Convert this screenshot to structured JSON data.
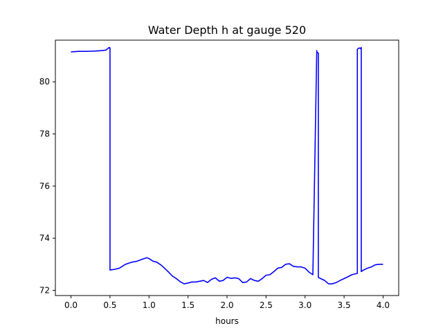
{
  "chart_data": {
    "type": "line",
    "title": "Water Depth h at gauge 520",
    "xlabel": "hours",
    "ylabel": "",
    "xlim": [
      -0.2,
      4.2
    ],
    "ylim": [
      71.8,
      81.6
    ],
    "xticks": [
      0.0,
      0.5,
      1.0,
      1.5,
      2.0,
      2.5,
      3.0,
      3.5,
      4.0
    ],
    "xtick_labels": [
      "0.0",
      "0.5",
      "1.0",
      "1.5",
      "2.0",
      "2.5",
      "3.0",
      "3.5",
      "4.0"
    ],
    "yticks": [
      72,
      74,
      76,
      78,
      80
    ],
    "ytick_labels": [
      "72",
      "74",
      "76",
      "78",
      "80"
    ],
    "grid": false,
    "legend": "none",
    "series": [
      {
        "color": "#0000ff",
        "x": [
          0.0,
          0.1,
          0.2,
          0.3,
          0.4,
          0.45,
          0.49,
          0.5,
          0.5,
          0.55,
          0.62,
          0.7,
          0.78,
          0.85,
          0.92,
          0.97,
          1.0,
          1.05,
          1.1,
          1.15,
          1.2,
          1.25,
          1.3,
          1.35,
          1.4,
          1.45,
          1.5,
          1.55,
          1.6,
          1.65,
          1.7,
          1.75,
          1.8,
          1.85,
          1.9,
          1.95,
          2.0,
          2.05,
          2.1,
          2.15,
          2.2,
          2.25,
          2.3,
          2.35,
          2.4,
          2.45,
          2.5,
          2.55,
          2.6,
          2.65,
          2.7,
          2.75,
          2.8,
          2.85,
          2.9,
          2.95,
          3.0,
          3.05,
          3.1,
          3.15,
          3.15,
          3.17,
          3.17,
          3.2,
          3.25,
          3.3,
          3.35,
          3.4,
          3.45,
          3.5,
          3.55,
          3.6,
          3.67,
          3.67,
          3.69,
          3.71,
          3.72,
          3.72,
          3.75,
          3.8,
          3.85,
          3.9,
          3.95,
          4.0
        ],
        "y": [
          81.15,
          81.17,
          81.17,
          81.18,
          81.2,
          81.22,
          81.32,
          81.3,
          72.78,
          72.8,
          72.85,
          73.0,
          73.08,
          73.12,
          73.2,
          73.25,
          73.22,
          73.12,
          73.08,
          72.98,
          72.85,
          72.7,
          72.55,
          72.45,
          72.33,
          72.25,
          72.28,
          72.32,
          72.32,
          72.35,
          72.38,
          72.3,
          72.42,
          72.48,
          72.35,
          72.38,
          72.5,
          72.46,
          72.48,
          72.45,
          72.3,
          72.32,
          72.45,
          72.38,
          72.35,
          72.45,
          72.58,
          72.6,
          72.72,
          72.85,
          72.88,
          73.0,
          73.02,
          72.92,
          72.9,
          72.9,
          72.85,
          72.7,
          72.6,
          81.2,
          81.15,
          81.1,
          72.5,
          72.45,
          72.38,
          72.25,
          72.25,
          72.3,
          72.38,
          72.45,
          72.52,
          72.6,
          72.65,
          81.25,
          81.3,
          81.28,
          81.32,
          72.72,
          72.78,
          72.85,
          72.9,
          72.98,
          73.0,
          73.0
        ]
      }
    ]
  }
}
